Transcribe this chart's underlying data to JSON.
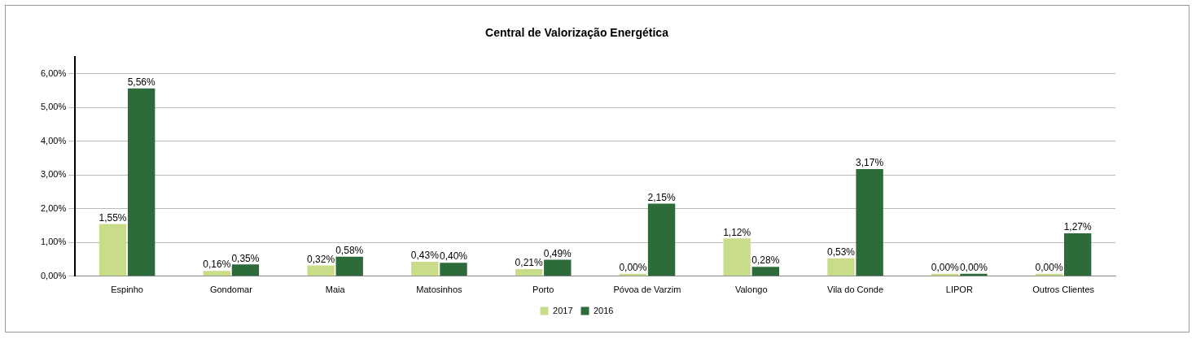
{
  "chart_data": {
    "type": "bar",
    "title": "Central de Valorização Energética",
    "categories": [
      "Espinho",
      "Gondomar",
      "Maia",
      "Matosinhos",
      "Porto",
      "Póvoa de Varzim",
      "Valongo",
      "Vila do Conde",
      "LIPOR",
      "Outros Clientes"
    ],
    "series": [
      {
        "name": "2017",
        "color": "#c9dc8a",
        "values": [
          1.55,
          0.16,
          0.32,
          0.43,
          0.21,
          0.0,
          1.12,
          0.53,
          0.0,
          0.0
        ],
        "value_labels": [
          "1,55%",
          "0,16%",
          "0,32%",
          "0,43%",
          "0,21%",
          "0,00%",
          "1,12%",
          "0,53%",
          "0,00%",
          "0,00%"
        ]
      },
      {
        "name": "2016",
        "color": "#2e6b3a",
        "values": [
          5.56,
          0.35,
          0.58,
          0.4,
          0.49,
          2.15,
          0.28,
          3.17,
          0.0,
          1.27
        ],
        "value_labels": [
          "5,56%",
          "0,35%",
          "0,58%",
          "0,40%",
          "0,49%",
          "2,15%",
          "0,28%",
          "3,17%",
          "0,00%",
          "1,27%"
        ]
      }
    ],
    "ylim": [
      0,
      6.5
    ],
    "yticks": [
      {
        "value": 0,
        "label": "0,00%"
      },
      {
        "value": 1,
        "label": "1,00%"
      },
      {
        "value": 2,
        "label": "2,00%"
      },
      {
        "value": 3,
        "label": "3,00%"
      },
      {
        "value": 4,
        "label": "4,00%"
      },
      {
        "value": 5,
        "label": "5,00%"
      },
      {
        "value": 6,
        "label": "6,00%"
      }
    ],
    "grid": "y",
    "legend": "bottom"
  }
}
